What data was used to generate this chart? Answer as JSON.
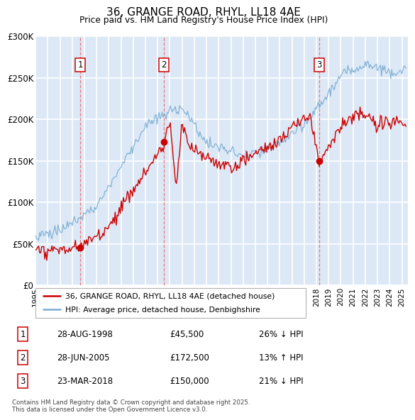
{
  "title": "36, GRANGE ROAD, RHYL, LL18 4AE",
  "subtitle": "Price paid vs. HM Land Registry's House Price Index (HPI)",
  "ylim": [
    0,
    300000
  ],
  "yticks": [
    0,
    50000,
    100000,
    150000,
    200000,
    250000,
    300000
  ],
  "ytick_labels": [
    "£0",
    "£50K",
    "£100K",
    "£150K",
    "£200K",
    "£250K",
    "£300K"
  ],
  "xlim_start": 1995.0,
  "xlim_end": 2025.5,
  "background_color": "#dce8f5",
  "grid_color": "#ffffff",
  "red_line_color": "#cc0000",
  "blue_line_color": "#7aadd4",
  "vline_color": "#ee6666",
  "transactions": [
    {
      "num": 1,
      "date": "28-AUG-1998",
      "price": 45500,
      "hpi_diff": "26% ↓ HPI",
      "year": 1998.65
    },
    {
      "num": 2,
      "date": "28-JUN-2005",
      "price": 172500,
      "hpi_diff": "13% ↑ HPI",
      "year": 2005.49
    },
    {
      "num": 3,
      "date": "23-MAR-2018",
      "price": 150000,
      "hpi_diff": "21% ↓ HPI",
      "year": 2018.22
    }
  ],
  "legend_line1": "36, GRANGE ROAD, RHYL, LL18 4AE (detached house)",
  "legend_line2": "HPI: Average price, detached house, Denbighshire",
  "footnote": "Contains HM Land Registry data © Crown copyright and database right 2025.\nThis data is licensed under the Open Government Licence v3.0."
}
